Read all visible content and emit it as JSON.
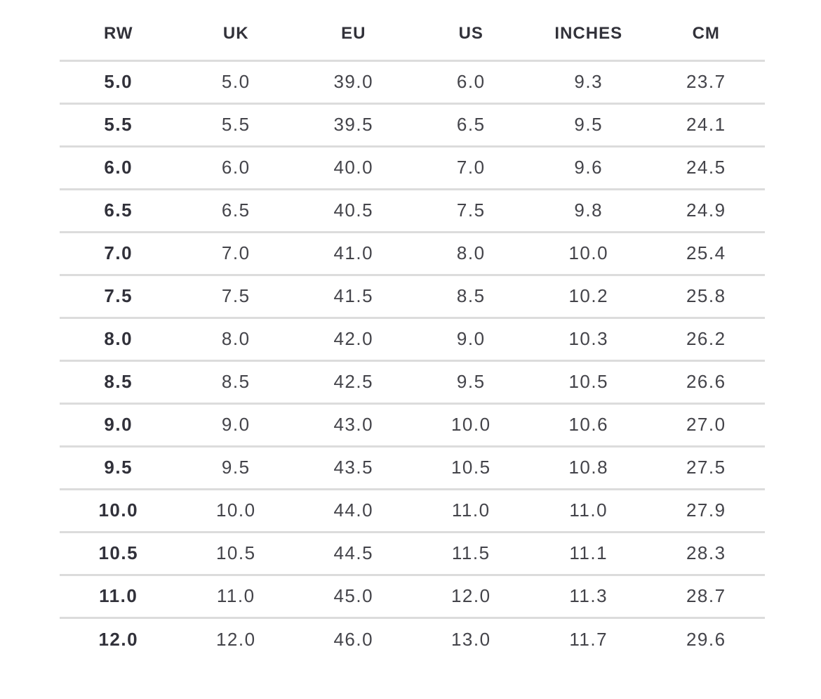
{
  "size_chart": {
    "columns": [
      "RW",
      "UK",
      "EU",
      "US",
      "INCHES",
      "CM"
    ],
    "rows": [
      [
        "5.0",
        "5.0",
        "39.0",
        "6.0",
        "9.3",
        "23.7"
      ],
      [
        "5.5",
        "5.5",
        "39.5",
        "6.5",
        "9.5",
        "24.1"
      ],
      [
        "6.0",
        "6.0",
        "40.0",
        "7.0",
        "9.6",
        "24.5"
      ],
      [
        "6.5",
        "6.5",
        "40.5",
        "7.5",
        "9.8",
        "24.9"
      ],
      [
        "7.0",
        "7.0",
        "41.0",
        "8.0",
        "10.0",
        "25.4"
      ],
      [
        "7.5",
        "7.5",
        "41.5",
        "8.5",
        "10.2",
        "25.8"
      ],
      [
        "8.0",
        "8.0",
        "42.0",
        "9.0",
        "10.3",
        "26.2"
      ],
      [
        "8.5",
        "8.5",
        "42.5",
        "9.5",
        "10.5",
        "26.6"
      ],
      [
        "9.0",
        "9.0",
        "43.0",
        "10.0",
        "10.6",
        "27.0"
      ],
      [
        "9.5",
        "9.5",
        "43.5",
        "10.5",
        "10.8",
        "27.5"
      ],
      [
        "10.0",
        "10.0",
        "44.0",
        "11.0",
        "11.0",
        "27.9"
      ],
      [
        "10.5",
        "10.5",
        "44.5",
        "11.5",
        "11.1",
        "28.3"
      ],
      [
        "11.0",
        "11.0",
        "45.0",
        "12.0",
        "11.3",
        "28.7"
      ],
      [
        "12.0",
        "12.0",
        "46.0",
        "13.0",
        "11.7",
        "29.6"
      ]
    ],
    "colors": {
      "background": "#ffffff",
      "header_text": "#32323a",
      "cell_text": "#44444a",
      "rw_column_text": "#31313a",
      "divider": "#dcdcdc"
    }
  }
}
